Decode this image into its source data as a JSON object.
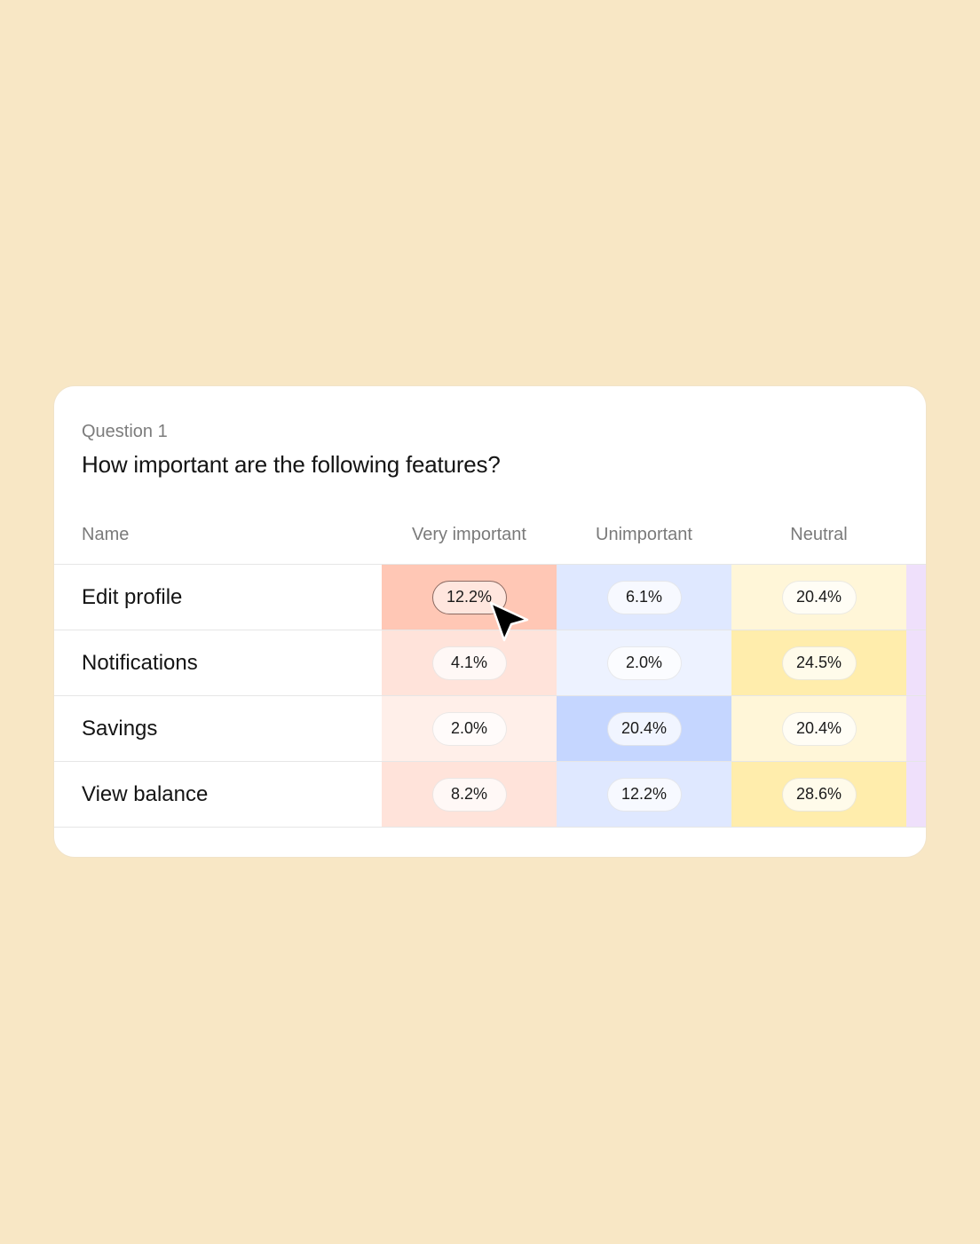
{
  "question": {
    "number": "Question 1",
    "title": "How important are the following features?"
  },
  "columns": {
    "name": "Name",
    "c1": "Very important",
    "c2": "Unimportant",
    "c3": "Neutral"
  },
  "rows": [
    {
      "name": "Edit profile",
      "c1": "12.2%",
      "c2": "6.1%",
      "c3": "20.4%"
    },
    {
      "name": "Notifications",
      "c1": "4.1%",
      "c2": "2.0%",
      "c3": "24.5%"
    },
    {
      "name": "Savings",
      "c1": "2.0%",
      "c2": "20.4%",
      "c3": "20.4%"
    },
    {
      "name": "View balance",
      "c1": "8.2%",
      "c2": "12.2%",
      "c3": "28.6%"
    }
  ],
  "colors": {
    "background": "#f8e7c5",
    "very_important": [
      "#ffc7b5",
      "#ffe3da",
      "#ffefe9",
      "#ffe3da"
    ],
    "unimportant": [
      "#dfe8ff",
      "#edf2ff",
      "#c5d6ff",
      "#dfe8ff"
    ],
    "neutral": [
      "#fff6d8",
      "#ffedac",
      "#fff6d8",
      "#ffedac"
    ],
    "extra_column": "#efe0fb"
  },
  "cursor": {
    "icon": "arrow-cursor-icon"
  }
}
